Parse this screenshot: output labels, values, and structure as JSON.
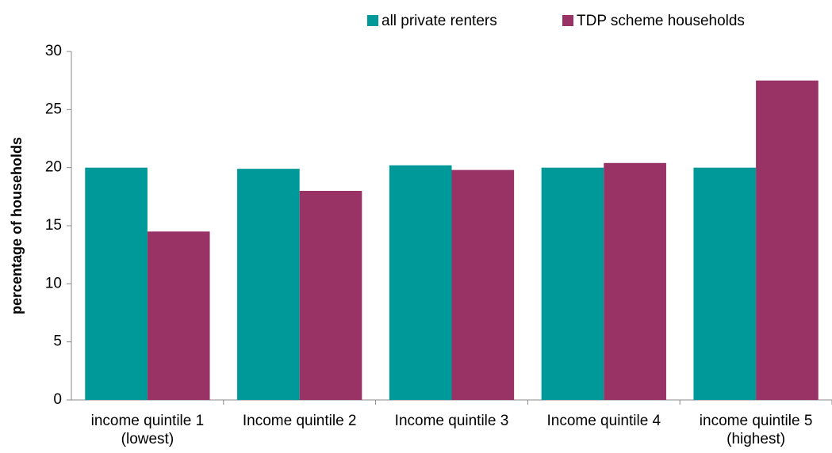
{
  "chart_data": {
    "type": "bar",
    "categories": [
      "income quintile 1\n(lowest)",
      "Income quintile 2",
      "Income quintile 3",
      "Income quintile 4",
      "income quintile 5\n(highest)"
    ],
    "series": [
      {
        "name": "all private renters",
        "color": "#009999",
        "values": [
          20.0,
          19.9,
          20.2,
          20.0,
          20.0
        ]
      },
      {
        "name": "TDP scheme households",
        "color": "#993366",
        "values": [
          14.5,
          18.0,
          19.8,
          20.4,
          27.5
        ]
      }
    ],
    "ylabel": "percentage of households",
    "ylim": [
      0,
      30
    ],
    "yticks": [
      0,
      5,
      10,
      15,
      20,
      25,
      30
    ],
    "grid": false,
    "legend": "top-right"
  }
}
